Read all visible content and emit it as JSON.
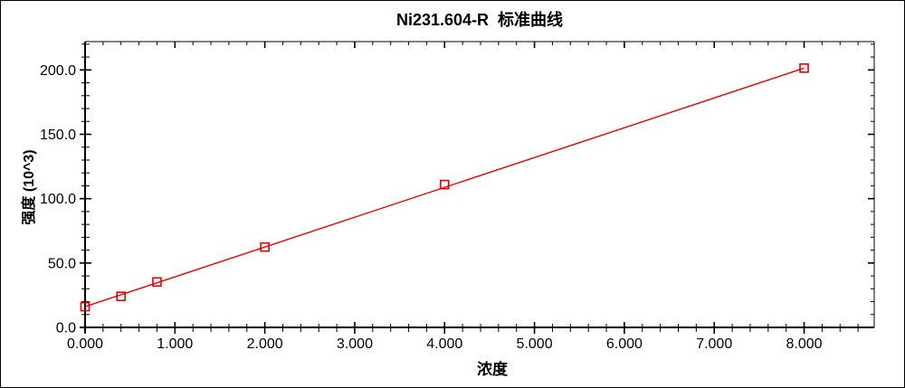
{
  "window": {
    "background": "#ffffff",
    "border_color": "#000000"
  },
  "chart_data": {
    "type": "scatter",
    "title": "Ni231.604-R  标准曲线",
    "xlabel": "浓度",
    "ylabel": "强度 (10^3)",
    "x": [
      0.0,
      0.4,
      0.8,
      2.0,
      4.0,
      8.0
    ],
    "y": [
      16.1,
      24.1,
      35.3,
      62.4,
      110.9,
      201.4
    ],
    "fit_line": {
      "x1": 0.0,
      "y1": 16.1,
      "x2": 8.0,
      "y2": 201.4
    },
    "xlim": [
      0,
      8.78
    ],
    "ylim": [
      0,
      222
    ],
    "x_major_ticks": [
      0,
      1,
      2,
      3,
      4,
      5,
      6,
      7,
      8
    ],
    "x_minor_step": 0.2,
    "y_major_ticks": [
      0,
      50,
      100,
      150,
      200
    ],
    "y_minor_step": 10,
    "x_tick_decimals": 3,
    "y_tick_decimals": 1,
    "grid": false,
    "legend": null,
    "marker": "open-square",
    "line_color": "#e80000",
    "marker_color": "#e80000",
    "axis_color": "#000000",
    "tick_label_color": "#000000"
  }
}
